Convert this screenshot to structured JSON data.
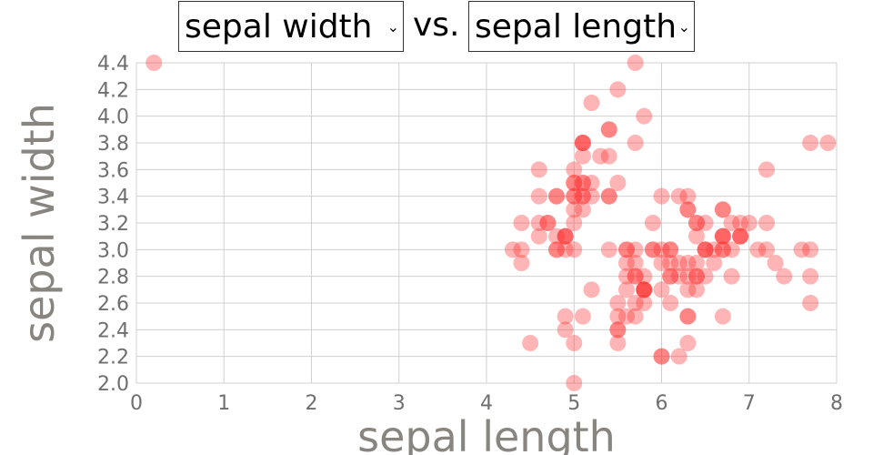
{
  "controls": {
    "y_select": {
      "value": "sepal width"
    },
    "separator": "vs.",
    "x_select": {
      "value": "sepal length"
    }
  },
  "chart_data": {
    "type": "scatter",
    "xlabel": "sepal length",
    "ylabel": "sepal width",
    "xlim": [
      0,
      8
    ],
    "ylim": [
      2.0,
      4.4
    ],
    "xticks": [
      0,
      1,
      2,
      3,
      4,
      5,
      6,
      7,
      8
    ],
    "yticks": [
      2.0,
      2.2,
      2.4,
      2.6,
      2.8,
      3.0,
      3.2,
      3.4,
      3.6,
      3.8,
      4.0,
      4.2,
      4.4
    ],
    "grid": true,
    "point_color": "#ff2a2a",
    "points": [
      [
        0.2,
        4.4
      ],
      [
        4.3,
        3.0
      ],
      [
        4.4,
        2.9
      ],
      [
        4.4,
        3.0
      ],
      [
        4.4,
        3.2
      ],
      [
        4.5,
        2.3
      ],
      [
        4.6,
        3.1
      ],
      [
        4.6,
        3.4
      ],
      [
        4.6,
        3.6
      ],
      [
        4.6,
        3.2
      ],
      [
        4.7,
        3.2
      ],
      [
        4.7,
        3.2
      ],
      [
        4.8,
        3.0
      ],
      [
        4.8,
        3.4
      ],
      [
        4.8,
        3.0
      ],
      [
        4.8,
        3.4
      ],
      [
        4.8,
        3.1
      ],
      [
        4.9,
        3.0
      ],
      [
        4.9,
        3.1
      ],
      [
        4.9,
        3.1
      ],
      [
        4.9,
        3.1
      ],
      [
        4.9,
        2.4
      ],
      [
        4.9,
        2.5
      ],
      [
        5.0,
        3.6
      ],
      [
        5.0,
        3.4
      ],
      [
        5.0,
        3.0
      ],
      [
        5.0,
        3.4
      ],
      [
        5.0,
        3.2
      ],
      [
        5.0,
        3.5
      ],
      [
        5.0,
        3.5
      ],
      [
        5.0,
        3.3
      ],
      [
        5.0,
        2.0
      ],
      [
        5.0,
        2.3
      ],
      [
        5.1,
        3.5
      ],
      [
        5.1,
        3.5
      ],
      [
        5.1,
        3.8
      ],
      [
        5.1,
        3.8
      ],
      [
        5.1,
        3.7
      ],
      [
        5.1,
        3.3
      ],
      [
        5.1,
        3.4
      ],
      [
        5.1,
        3.8
      ],
      [
        5.1,
        2.5
      ],
      [
        5.1,
        3.4
      ],
      [
        5.2,
        3.5
      ],
      [
        5.2,
        3.4
      ],
      [
        5.2,
        4.1
      ],
      [
        5.2,
        2.7
      ],
      [
        5.3,
        3.7
      ],
      [
        5.4,
        3.9
      ],
      [
        5.4,
        3.4
      ],
      [
        5.4,
        3.7
      ],
      [
        5.4,
        3.9
      ],
      [
        5.4,
        3.4
      ],
      [
        5.4,
        3.0
      ],
      [
        5.5,
        4.2
      ],
      [
        5.5,
        3.5
      ],
      [
        5.5,
        2.3
      ],
      [
        5.5,
        2.4
      ],
      [
        5.5,
        2.4
      ],
      [
        5.5,
        2.5
      ],
      [
        5.5,
        2.6
      ],
      [
        5.6,
        2.9
      ],
      [
        5.6,
        3.0
      ],
      [
        5.6,
        2.5
      ],
      [
        5.6,
        2.8
      ],
      [
        5.6,
        2.7
      ],
      [
        5.6,
        3.0
      ],
      [
        5.7,
        4.4
      ],
      [
        5.7,
        3.8
      ],
      [
        5.7,
        2.8
      ],
      [
        5.7,
        2.6
      ],
      [
        5.7,
        3.0
      ],
      [
        5.7,
        2.9
      ],
      [
        5.7,
        2.8
      ],
      [
        5.7,
        2.5
      ],
      [
        5.8,
        4.0
      ],
      [
        5.8,
        2.7
      ],
      [
        5.8,
        2.7
      ],
      [
        5.8,
        2.6
      ],
      [
        5.8,
        2.7
      ],
      [
        5.8,
        2.8
      ],
      [
        5.8,
        2.7
      ],
      [
        5.9,
        3.0
      ],
      [
        5.9,
        3.2
      ],
      [
        5.9,
        3.0
      ],
      [
        6.0,
        2.2
      ],
      [
        6.0,
        2.9
      ],
      [
        6.0,
        2.7
      ],
      [
        6.0,
        3.4
      ],
      [
        6.0,
        2.2
      ],
      [
        6.0,
        3.0
      ],
      [
        6.1,
        2.8
      ],
      [
        6.1,
        2.8
      ],
      [
        6.1,
        3.0
      ],
      [
        6.1,
        2.9
      ],
      [
        6.1,
        3.0
      ],
      [
        6.1,
        2.6
      ],
      [
        6.2,
        2.2
      ],
      [
        6.2,
        2.9
      ],
      [
        6.2,
        2.8
      ],
      [
        6.2,
        3.4
      ],
      [
        6.3,
        3.3
      ],
      [
        6.3,
        2.5
      ],
      [
        6.3,
        2.3
      ],
      [
        6.3,
        2.5
      ],
      [
        6.3,
        2.9
      ],
      [
        6.3,
        2.8
      ],
      [
        6.3,
        2.7
      ],
      [
        6.3,
        3.4
      ],
      [
        6.3,
        3.3
      ],
      [
        6.4,
        3.2
      ],
      [
        6.4,
        2.9
      ],
      [
        6.4,
        2.7
      ],
      [
        6.4,
        3.2
      ],
      [
        6.4,
        2.8
      ],
      [
        6.4,
        3.1
      ],
      [
        6.4,
        2.8
      ],
      [
        6.5,
        2.8
      ],
      [
        6.5,
        3.0
      ],
      [
        6.5,
        3.2
      ],
      [
        6.5,
        3.0
      ],
      [
        6.5,
        3.0
      ],
      [
        6.6,
        2.9
      ],
      [
        6.6,
        3.0
      ],
      [
        6.7,
        3.1
      ],
      [
        6.7,
        3.0
      ],
      [
        6.7,
        3.1
      ],
      [
        6.7,
        2.5
      ],
      [
        6.7,
        3.3
      ],
      [
        6.7,
        3.0
      ],
      [
        6.7,
        3.1
      ],
      [
        6.7,
        3.3
      ],
      [
        6.8,
        2.8
      ],
      [
        6.8,
        3.0
      ],
      [
        6.8,
        3.2
      ],
      [
        6.9,
        3.1
      ],
      [
        6.9,
        3.2
      ],
      [
        6.9,
        3.1
      ],
      [
        6.9,
        3.1
      ],
      [
        7.0,
        3.2
      ],
      [
        7.1,
        3.0
      ],
      [
        7.2,
        3.6
      ],
      [
        7.2,
        3.2
      ],
      [
        7.2,
        3.0
      ],
      [
        7.3,
        2.9
      ],
      [
        7.4,
        2.8
      ],
      [
        7.6,
        3.0
      ],
      [
        7.7,
        3.8
      ],
      [
        7.7,
        2.6
      ],
      [
        7.7,
        2.8
      ],
      [
        7.7,
        3.0
      ],
      [
        7.9,
        3.8
      ]
    ]
  }
}
